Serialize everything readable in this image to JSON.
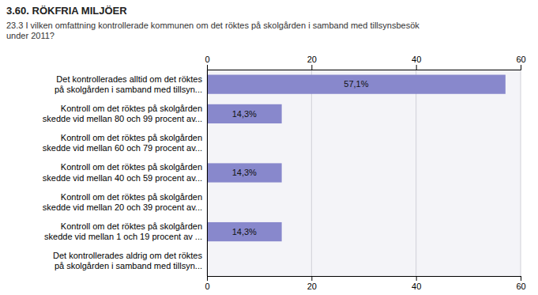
{
  "chart_data": {
    "type": "bar",
    "orientation": "horizontal",
    "title": "3.60. RÖKFRIA MILJÖER",
    "subtitle": "23.3 I vilken omfattning kontrollerade kommunen om det röktes på skolgården i samband med tillsynsbesök\nunder 2011?",
    "categories": [
      "Det kontrollerades alltid om det röktes\npå skolgården i samband med tillsyn...",
      "Kontroll om det röktes på skolgården\nskedde vid mellan 80 och 99 procent av...",
      "Kontroll om det röktes på skolgården\nskedde vid mellan 60 och 79 procent av...",
      "Kontroll om det röktes på skolgården\nskedde vid mellan 40 och 59 procent av...",
      "Kontroll om det röktes på skolgården\nskedde vid mellan 20 och 39 procent av...",
      "Kontroll om det röktes på skolgården\nskedde vid mellan 1 och 19 procent av ...",
      "Det kontrollerades aldrig om det röktes\npå skolgården i samband med tillsyn..."
    ],
    "values": [
      57.1,
      14.3,
      0.0,
      14.3,
      0.0,
      14.3,
      0.0
    ],
    "value_labels": [
      "57,1%",
      "14,3%",
      null,
      "14,3%",
      null,
      "14,3%",
      null
    ],
    "data_labels": true,
    "color": "#8888cc",
    "xlim": [
      0,
      60
    ],
    "xticks": [
      0,
      20,
      40,
      60
    ],
    "grid": true
  }
}
